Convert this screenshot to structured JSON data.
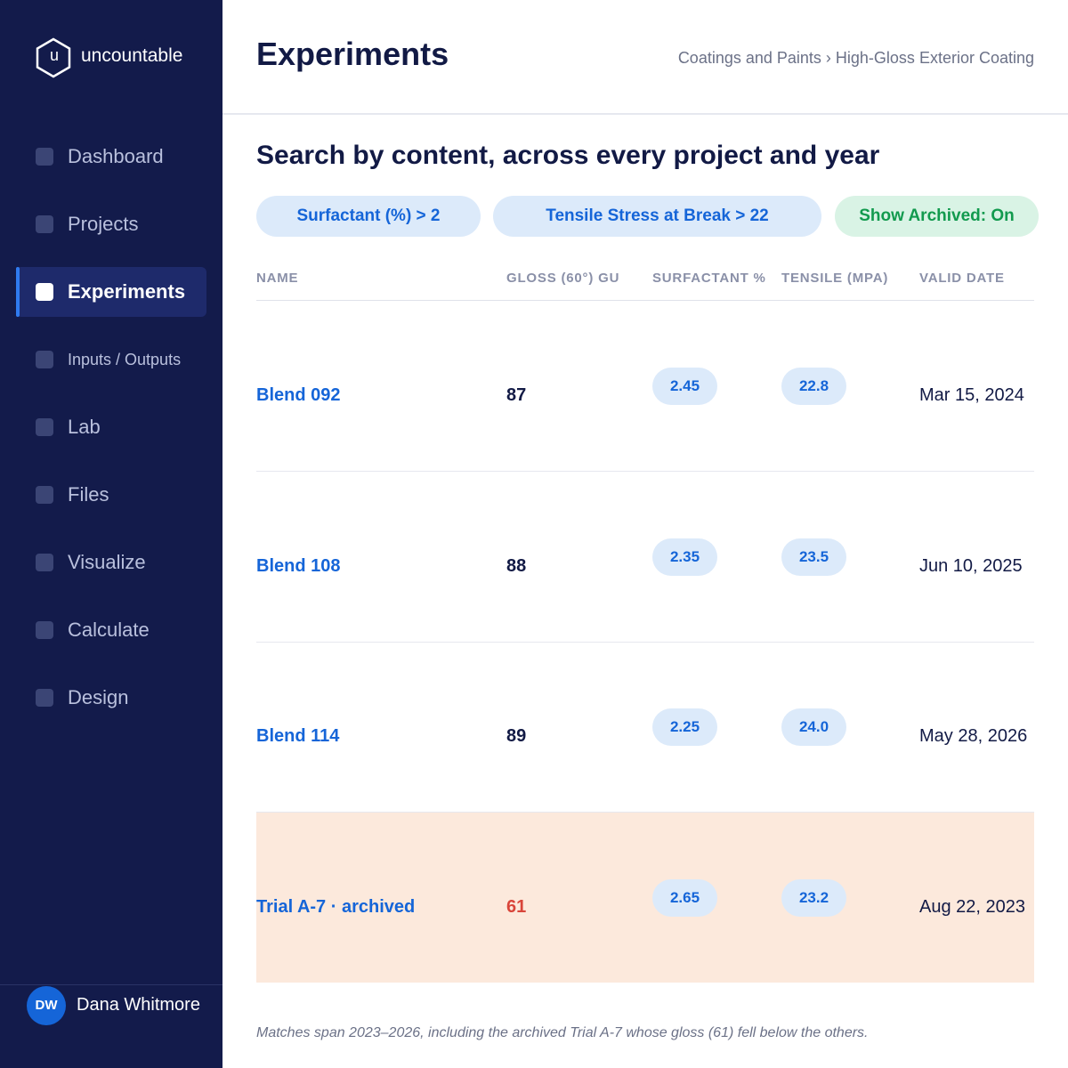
{
  "brand": {
    "logo_letter": "u",
    "name": "uncountable"
  },
  "nav": {
    "items": [
      {
        "label": "Dashboard"
      },
      {
        "label": "Projects"
      },
      {
        "label": "Experiments",
        "active": true
      },
      {
        "label": "Inputs / Outputs"
      },
      {
        "label": "Lab"
      },
      {
        "label": "Files"
      },
      {
        "label": "Visualize"
      },
      {
        "label": "Calculate"
      },
      {
        "label": "Design"
      }
    ]
  },
  "user": {
    "initials": "DW",
    "name": "Dana Whitmore"
  },
  "header": {
    "title": "Experiments",
    "breadcrumb": "Coatings and Paints › High-Gloss Exterior Coating"
  },
  "search": {
    "heading": "Search by content, across every project and year",
    "filters": [
      {
        "label": "Surfactant (%) > 2",
        "style": "blue"
      },
      {
        "label": "Tensile Stress at Break > 22",
        "style": "blue"
      },
      {
        "label": "Show Archived: On",
        "style": "green"
      }
    ]
  },
  "table": {
    "columns": [
      "NAME",
      "GLOSS (60°) GU",
      "SURFACTANT %",
      "TENSILE (MPA)",
      "VALID DATE"
    ],
    "rows": [
      {
        "cells": [
          "Blend 092",
          "87",
          "2.45",
          "22.8",
          "Mar 15, 2024"
        ]
      },
      {
        "cells": [
          "Blend 108",
          "88",
          "2.35",
          "23.5",
          "Jun 10, 2025"
        ]
      },
      {
        "cells": [
          "Blend 114",
          "89",
          "2.25",
          "24.0",
          "May 28, 2026"
        ]
      },
      {
        "cells": [
          "Trial A-7 · archived",
          "61",
          "2.65",
          "23.2",
          "Aug 22, 2023"
        ],
        "archived": true
      }
    ]
  },
  "footnote": "Matches span 2023–2026, including the archived Trial A-7 whose gloss (61) fell below the others."
}
